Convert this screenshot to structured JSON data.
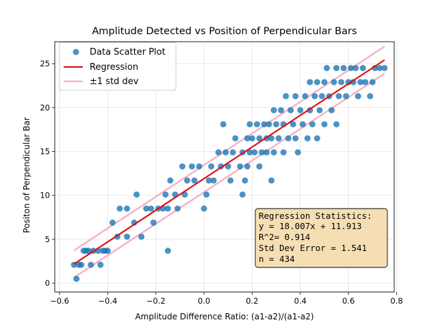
{
  "chart_data": {
    "type": "scatter",
    "title": "Amplitude Detected vs Position of Perpendicular Bars",
    "xlabel": "Amplitude Difference Ratio: (a1-a2)/(a1-a2)",
    "ylabel": "Positon of Perpendicular Bar",
    "xlim": [
      -0.62,
      0.79
    ],
    "ylim": [
      -1.0,
      27.5
    ],
    "x_ticks": [
      -0.6,
      -0.4,
      -0.2,
      0.0,
      0.2,
      0.4,
      0.6,
      0.8
    ],
    "x_tick_labels": [
      "−0.6",
      "−0.4",
      "−0.2",
      "0.0",
      "0.2",
      "0.4",
      "0.6",
      "0.8"
    ],
    "y_ticks": [
      0,
      5,
      10,
      15,
      20,
      25
    ],
    "y_tick_labels": [
      "0",
      "5",
      "10",
      "15",
      "20",
      "25"
    ],
    "grid": true,
    "legend_position": "top-left",
    "colors": {
      "scatter": "#1f77b4",
      "regression": "#e01010",
      "std_band": "#f4b6c8",
      "stats_box_fill": "#f5deb3",
      "stats_box_edge": "#000000"
    },
    "series": [
      {
        "name": "Data Scatter Plot",
        "kind": "scatter",
        "points": [
          [
            -0.54,
            2.1
          ],
          [
            -0.53,
            0.5
          ],
          [
            -0.52,
            2.1
          ],
          [
            -0.51,
            2.1
          ],
          [
            -0.5,
            3.7
          ],
          [
            -0.49,
            3.7
          ],
          [
            -0.48,
            3.7
          ],
          [
            -0.47,
            2.1
          ],
          [
            -0.46,
            3.7
          ],
          [
            -0.44,
            3.7
          ],
          [
            -0.43,
            2.1
          ],
          [
            -0.42,
            3.7
          ],
          [
            -0.41,
            3.7
          ],
          [
            -0.4,
            3.7
          ],
          [
            -0.38,
            6.9
          ],
          [
            -0.36,
            5.3
          ],
          [
            -0.35,
            8.5
          ],
          [
            -0.32,
            5.3
          ],
          [
            -0.32,
            8.5
          ],
          [
            -0.29,
            6.9
          ],
          [
            -0.28,
            10.1
          ],
          [
            -0.26,
            5.3
          ],
          [
            -0.24,
            8.5
          ],
          [
            -0.22,
            8.5
          ],
          [
            -0.21,
            6.9
          ],
          [
            -0.19,
            8.5
          ],
          [
            -0.17,
            8.5
          ],
          [
            -0.16,
            10.1
          ],
          [
            -0.15,
            8.5
          ],
          [
            -0.15,
            3.7
          ],
          [
            -0.14,
            11.7
          ],
          [
            -0.12,
            10.1
          ],
          [
            -0.11,
            8.5
          ],
          [
            -0.09,
            13.3
          ],
          [
            -0.08,
            10.1
          ],
          [
            -0.07,
            11.7
          ],
          [
            -0.05,
            13.3
          ],
          [
            -0.04,
            11.7
          ],
          [
            -0.02,
            13.3
          ],
          [
            0.0,
            8.5
          ],
          [
            0.01,
            10.1
          ],
          [
            0.02,
            11.7
          ],
          [
            0.03,
            13.3
          ],
          [
            0.04,
            11.7
          ],
          [
            0.06,
            14.9
          ],
          [
            0.07,
            13.3
          ],
          [
            0.08,
            18.1
          ],
          [
            0.09,
            14.9
          ],
          [
            0.1,
            13.3
          ],
          [
            0.11,
            11.7
          ],
          [
            0.12,
            14.9
          ],
          [
            0.13,
            16.5
          ],
          [
            0.15,
            13.3
          ],
          [
            0.16,
            14.9
          ],
          [
            0.16,
            10.1
          ],
          [
            0.17,
            11.7
          ],
          [
            0.18,
            16.5
          ],
          [
            0.18,
            13.3
          ],
          [
            0.19,
            14.9
          ],
          [
            0.19,
            18.1
          ],
          [
            0.2,
            16.5
          ],
          [
            0.21,
            14.9
          ],
          [
            0.22,
            18.1
          ],
          [
            0.23,
            16.5
          ],
          [
            0.23,
            13.3
          ],
          [
            0.24,
            14.9
          ],
          [
            0.25,
            18.1
          ],
          [
            0.26,
            16.5
          ],
          [
            0.26,
            14.9
          ],
          [
            0.27,
            18.1
          ],
          [
            0.28,
            16.5
          ],
          [
            0.28,
            11.7
          ],
          [
            0.29,
            19.7
          ],
          [
            0.29,
            14.9
          ],
          [
            0.3,
            18.1
          ],
          [
            0.31,
            16.5
          ],
          [
            0.32,
            19.7
          ],
          [
            0.33,
            18.1
          ],
          [
            0.33,
            14.9
          ],
          [
            0.34,
            21.3
          ],
          [
            0.35,
            16.5
          ],
          [
            0.36,
            19.7
          ],
          [
            0.37,
            18.1
          ],
          [
            0.38,
            21.3
          ],
          [
            0.38,
            16.5
          ],
          [
            0.39,
            14.9
          ],
          [
            0.4,
            19.7
          ],
          [
            0.41,
            18.1
          ],
          [
            0.42,
            21.3
          ],
          [
            0.43,
            16.5
          ],
          [
            0.44,
            19.7
          ],
          [
            0.44,
            22.9
          ],
          [
            0.45,
            18.1
          ],
          [
            0.46,
            21.3
          ],
          [
            0.47,
            16.5
          ],
          [
            0.47,
            22.9
          ],
          [
            0.48,
            19.7
          ],
          [
            0.49,
            21.3
          ],
          [
            0.5,
            18.1
          ],
          [
            0.5,
            22.9
          ],
          [
            0.51,
            24.5
          ],
          [
            0.52,
            21.3
          ],
          [
            0.53,
            19.7
          ],
          [
            0.54,
            22.9
          ],
          [
            0.55,
            18.1
          ],
          [
            0.55,
            24.5
          ],
          [
            0.56,
            21.3
          ],
          [
            0.57,
            22.9
          ],
          [
            0.58,
            24.5
          ],
          [
            0.59,
            21.3
          ],
          [
            0.6,
            22.9
          ],
          [
            0.61,
            24.5
          ],
          [
            0.62,
            22.9
          ],
          [
            0.63,
            24.5
          ],
          [
            0.64,
            21.3
          ],
          [
            0.65,
            22.9
          ],
          [
            0.66,
            24.5
          ],
          [
            0.67,
            22.9
          ],
          [
            0.69,
            21.3
          ],
          [
            0.7,
            22.9
          ],
          [
            0.71,
            24.5
          ],
          [
            0.73,
            24.5
          ],
          [
            0.75,
            24.5
          ]
        ]
      },
      {
        "name": "Regression",
        "kind": "line",
        "slope": 18.007,
        "intercept": 11.913,
        "x_range": [
          -0.54,
          0.75
        ]
      },
      {
        "name": "±1 std dev",
        "kind": "band",
        "offset": 1.541
      }
    ],
    "annotation": {
      "lines": [
        "Regression Statistics:",
        "y = 18.007x + 11.913",
        "R^2= 0.914",
        "Std Dev Error = 1.541",
        "n = 434"
      ]
    }
  }
}
